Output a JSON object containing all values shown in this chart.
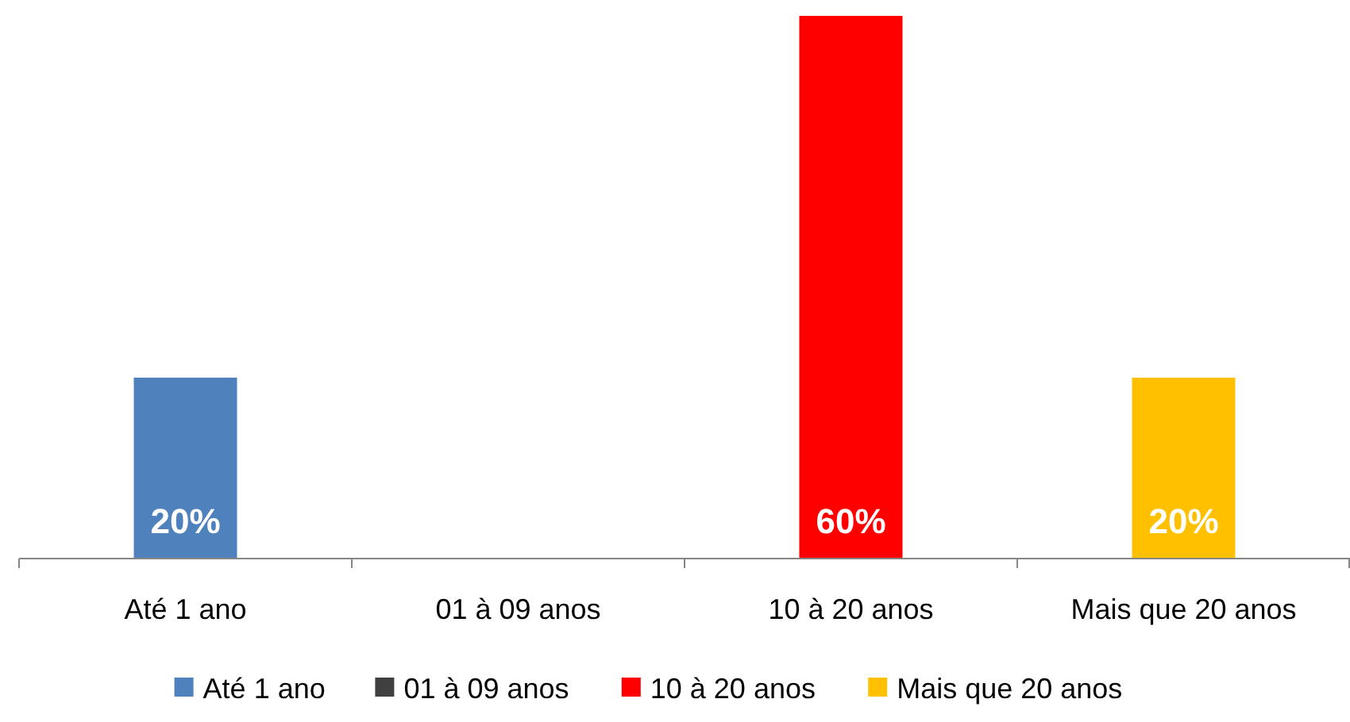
{
  "chart_data": {
    "type": "bar",
    "categories": [
      "Até 1 ano",
      "01 à 09 anos",
      "10 à 20 anos",
      "Mais que 20 anos"
    ],
    "stacked": true,
    "series": [
      {
        "name": "Até 1 ano",
        "color": "#4f81bd",
        "values": [
          20,
          null,
          null,
          null
        ],
        "value_labels": [
          "20%",
          null,
          null,
          null
        ]
      },
      {
        "name": "01 à 09 anos",
        "color": "#404040",
        "values": [
          null,
          0,
          null,
          null
        ],
        "value_labels": [
          null,
          null,
          null,
          null
        ]
      },
      {
        "name": "10 à 20 anos",
        "color": "#ff0000",
        "values": [
          null,
          null,
          60,
          null
        ],
        "value_labels": [
          null,
          null,
          "60%",
          null
        ]
      },
      {
        "name": "Mais que 20 anos",
        "color": "#ffc000",
        "values": [
          null,
          null,
          null,
          20
        ],
        "value_labels": [
          null,
          null,
          null,
          "20%"
        ]
      }
    ],
    "ylim": [
      0,
      60
    ],
    "tick_labels": "x",
    "legend": "bottom"
  }
}
